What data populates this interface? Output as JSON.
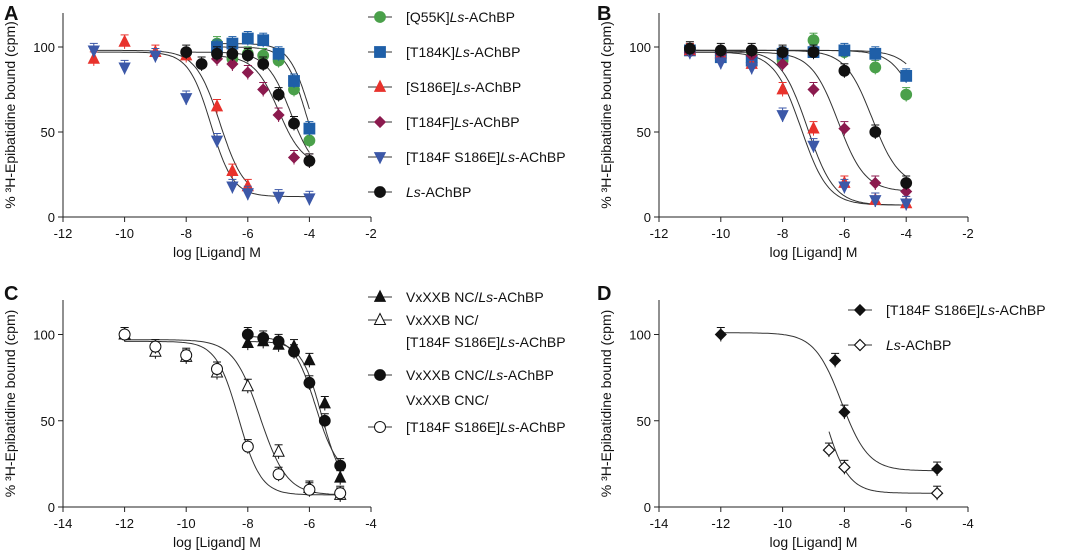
{
  "figure": {
    "panels": [
      "A",
      "B",
      "C",
      "D"
    ]
  },
  "chart_data": [
    {
      "panel": "A",
      "type": "line",
      "xlabel": "log [Ligand] M",
      "ylabel": "% ³H-Epibatidine bound (cpm)",
      "xlim": [
        -12,
        -2
      ],
      "ylim": [
        0,
        120
      ],
      "xticks": [
        -12,
        -10,
        -8,
        -6,
        -4,
        -2
      ],
      "yticks": [
        0,
        50,
        100
      ],
      "series": [
        {
          "name": "[Q55K]Ls-AChBP",
          "name_plain": "[Q55K]",
          "name_italic": "Ls",
          "name_suffix": "-AChBP",
          "color": "#4aa04a",
          "marker": "circle",
          "x": [
            -7,
            -6.5,
            -6,
            -5.5,
            -5,
            -4.5,
            -4
          ],
          "y": [
            102,
            93,
            96,
            95,
            92,
            75,
            45
          ],
          "fit": {
            "top": 100,
            "bottom": 20,
            "logEC50": -4.1,
            "hill": 1.3
          }
        },
        {
          "name": "[T184K]Ls-AChBP",
          "name_plain": "[T184K]",
          "name_italic": "Ls",
          "name_suffix": "-AChBP",
          "color": "#1f5fa8",
          "marker": "square",
          "x": [
            -7,
            -6.5,
            -6,
            -5.5,
            -5,
            -4.5,
            -4
          ],
          "y": [
            100,
            102,
            105,
            104,
            96,
            80,
            52
          ],
          "fit": {
            "top": 102,
            "bottom": 25,
            "logEC50": -4.0,
            "hill": 1.3
          }
        },
        {
          "name": "[S186E]Ls-AChBP",
          "name_plain": "[S186E]",
          "name_italic": "Ls",
          "name_suffix": "-AChBP",
          "color": "#e8322c",
          "marker": "triangle-up",
          "x": [
            -11,
            -10,
            -9,
            -8,
            -7,
            -6.5,
            -6
          ],
          "y": [
            93,
            103,
            97,
            95,
            65,
            27,
            18
          ],
          "fit": {
            "top": 98,
            "bottom": 12,
            "logEC50": -6.9,
            "hill": 1.1
          }
        },
        {
          "name": "[T184F]Ls-AChBP",
          "name_plain": "[T184F]",
          "name_italic": "Ls",
          "name_suffix": "-AChBP",
          "color": "#8b1a4e",
          "marker": "diamond",
          "x": [
            -7,
            -6.5,
            -6,
            -5.5,
            -5,
            -4.5,
            -4
          ],
          "y": [
            93,
            90,
            85,
            75,
            60,
            35,
            33
          ],
          "fit": {
            "top": 95,
            "bottom": 30,
            "logEC50": -5.0,
            "hill": 1.1
          }
        },
        {
          "name": "[T184F S186E]Ls-AChBP",
          "name_plain": "[T184F S186E]",
          "name_italic": "Ls",
          "name_suffix": "-AChBP",
          "color": "#3c58a8",
          "marker": "triangle-down",
          "x": [
            -11,
            -10,
            -9,
            -8,
            -7,
            -6.5,
            -6,
            -5,
            -4
          ],
          "y": [
            98,
            88,
            95,
            70,
            45,
            18,
            14,
            12,
            11
          ],
          "fit": {
            "top": 97,
            "bottom": 12,
            "logEC50": -7.2,
            "hill": 1.2
          }
        },
        {
          "name": "Ls-AChBP",
          "name_plain": "",
          "name_italic": "Ls",
          "name_suffix": "-AChBP",
          "color": "#111111",
          "marker": "circle",
          "x": [
            -8,
            -7.5,
            -7,
            -6.5,
            -6,
            -5.5,
            -5,
            -4.5,
            -4
          ],
          "y": [
            97,
            90,
            96,
            96,
            95,
            90,
            72,
            55,
            33
          ],
          "fit": {
            "top": 97,
            "bottom": 25,
            "logEC50": -4.6,
            "hill": 1.1
          }
        }
      ]
    },
    {
      "panel": "B",
      "type": "line",
      "xlabel": "log [Ligand] M",
      "ylabel": "% ³H-Epibatidine bound (cpm)",
      "xlim": [
        -12,
        -2
      ],
      "ylim": [
        0,
        120
      ],
      "xticks": [
        -12,
        -10,
        -8,
        -6,
        -4,
        -2
      ],
      "yticks": [
        0,
        50,
        100
      ],
      "series": [
        {
          "name": "[Q55K]Ls-AChBP",
          "color": "#4aa04a",
          "marker": "circle",
          "x": [
            -11,
            -10,
            -9,
            -8,
            -7,
            -6,
            -5,
            -4
          ],
          "y": [
            98,
            95,
            95,
            92,
            104,
            97,
            88,
            72
          ],
          "fit": {
            "top": 98,
            "bottom": 20,
            "logEC50": -3.5,
            "hill": 1.0
          }
        },
        {
          "name": "[T184K]Ls-AChBP",
          "color": "#1f5fa8",
          "marker": "square",
          "x": [
            -11,
            -10,
            -9,
            -8,
            -7,
            -6,
            -5,
            -4
          ],
          "y": [
            98,
            94,
            92,
            96,
            97,
            98,
            96,
            83
          ],
          "fit": {
            "top": 98,
            "bottom": 40,
            "logEC50": -3.2,
            "hill": 1.0
          }
        },
        {
          "name": "[S186E]Ls-AChBP",
          "color": "#e8322c",
          "marker": "triangle-up",
          "x": [
            -11,
            -10,
            -9,
            -8,
            -7,
            -6,
            -5,
            -4
          ],
          "y": [
            98,
            96,
            90,
            75,
            52,
            20,
            10,
            8
          ],
          "fit": {
            "top": 98,
            "bottom": 7,
            "logEC50": -7.2,
            "hill": 1.0
          }
        },
        {
          "name": "[T184F]Ls-AChBP",
          "color": "#8b1a4e",
          "marker": "diamond",
          "x": [
            -11,
            -10,
            -9,
            -8,
            -7,
            -6,
            -5,
            -4
          ],
          "y": [
            97,
            96,
            95,
            90,
            75,
            52,
            20,
            15
          ],
          "fit": {
            "top": 97,
            "bottom": 15,
            "logEC50": -6.2,
            "hill": 1.0
          }
        },
        {
          "name": "[T184F S186E]Ls-AChBP",
          "color": "#3c58a8",
          "marker": "triangle-down",
          "x": [
            -11,
            -10,
            -9,
            -8,
            -7,
            -6,
            -5,
            -4
          ],
          "y": [
            97,
            91,
            88,
            60,
            42,
            18,
            10,
            8
          ],
          "fit": {
            "top": 97,
            "bottom": 7,
            "logEC50": -7.4,
            "hill": 1.0
          }
        },
        {
          "name": "Ls-AChBP",
          "color": "#111111",
          "marker": "circle",
          "x": [
            -11,
            -10,
            -9,
            -8,
            -7,
            -6,
            -5,
            -4
          ],
          "y": [
            99,
            98,
            98,
            97,
            97,
            86,
            50,
            20
          ],
          "fit": {
            "top": 98,
            "bottom": 18,
            "logEC50": -5.1,
            "hill": 1.0
          }
        }
      ]
    },
    {
      "panel": "C",
      "type": "line",
      "xlabel": "log [Ligand] M",
      "ylabel": "% ³H-Epibatidine bound (cpm)",
      "xlim": [
        -14,
        -4
      ],
      "ylim": [
        0,
        120
      ],
      "xticks": [
        -14,
        -12,
        -10,
        -8,
        -6,
        -4
      ],
      "yticks": [
        0,
        50,
        100
      ],
      "series": [
        {
          "name": "VxXXB NC/Ls-AChBP",
          "color": "#111111",
          "marker": "triangle-up",
          "x": [
            -8,
            -7.5,
            -7,
            -6.5,
            -6,
            -5.5,
            -5
          ],
          "y": [
            95,
            96,
            94,
            93,
            85,
            60,
            17
          ],
          "fit": {
            "top": 96,
            "bottom": 10,
            "logEC50": -5.6,
            "hill": 1.3
          }
        },
        {
          "name": "VxXXB NC/[T184F S186E]Ls-AChBP",
          "color": "#111111",
          "marker": "triangle-up-open",
          "x": [
            -12,
            -11,
            -10,
            -9,
            -8,
            -7,
            -6,
            -5
          ],
          "y": [
            100,
            90,
            87,
            78,
            70,
            32,
            11,
            7
          ],
          "fit": {
            "top": 97,
            "bottom": 7,
            "logEC50": -7.6,
            "hill": 1.0
          }
        },
        {
          "name": "VxXXB CNC/Ls-AChBP",
          "color": "#111111",
          "marker": "circle",
          "x": [
            -8,
            -7.5,
            -7,
            -6.5,
            -6,
            -5.5,
            -5
          ],
          "y": [
            100,
            98,
            96,
            90,
            72,
            50,
            24
          ],
          "fit": {
            "top": 99,
            "bottom": 18,
            "logEC50": -5.8,
            "hill": 1.2
          }
        },
        {
          "name": "VxXXB CNC/[T184F S186E]Ls-AChBP",
          "color": "#111111",
          "marker": "circle-open",
          "x": [
            -12,
            -11,
            -10,
            -9,
            -8,
            -7,
            -6,
            -5
          ],
          "y": [
            100,
            93,
            88,
            80,
            35,
            19,
            10,
            8
          ],
          "fit": {
            "top": 96,
            "bottom": 7,
            "logEC50": -8.3,
            "hill": 1.2
          }
        }
      ],
      "legend": {
        "entries": [
          {
            "marker": "triangle-up",
            "lines": [
              "VxXXB NC/",
              "Ls",
              "-AChBP"
            ]
          },
          {
            "marker": "triangle-up-open",
            "lines": [
              "VxXXB NC/",
              "[T184F S186E]",
              "Ls",
              "-AChBP"
            ]
          },
          {
            "marker": "circle",
            "lines": [
              "VxXXB CNC/",
              "Ls",
              "-AChBP"
            ]
          },
          {
            "marker": "circle-open",
            "lines": [
              "VxXXB CNC/",
              "[T184F S186E]",
              "Ls",
              "-AChBP"
            ]
          }
        ]
      }
    },
    {
      "panel": "D",
      "type": "line",
      "xlabel": "log [Ligand] M",
      "ylabel": "% ³H-Epibatidine bound (cpm)",
      "xlim": [
        -14,
        -4
      ],
      "ylim": [
        0,
        120
      ],
      "xticks": [
        -14,
        -12,
        -10,
        -8,
        -6,
        -4
      ],
      "yticks": [
        0,
        50,
        100
      ],
      "series": [
        {
          "name": "[T184F S186E]Ls-AChBP",
          "color": "#111111",
          "marker": "diamond",
          "x": [
            -12,
            -8.3,
            -8,
            -5
          ],
          "y": [
            100,
            85,
            55,
            22
          ],
          "fit": {
            "top": 101,
            "bottom": 21,
            "logEC50": -8.1,
            "hill": 1.0
          }
        },
        {
          "name": "Ls-AChBP",
          "color": "#111111",
          "marker": "diamond-open",
          "x": [
            -8.5,
            -8,
            -5
          ],
          "y": [
            33,
            23,
            8
          ],
          "fit": {
            "top": 103,
            "bottom": 8,
            "logEC50": -8.7,
            "hill": 1.1
          }
        }
      ]
    }
  ],
  "legends": {
    "A": [
      {
        "plain": "[Q55K]",
        "italic": "Ls",
        "suffix": "-AChBP"
      },
      {
        "plain": "[T184K]",
        "italic": "Ls",
        "suffix": "-AChBP"
      },
      {
        "plain": "[S186E]",
        "italic": "Ls",
        "suffix": "-AChBP"
      },
      {
        "plain": "[T184F]",
        "italic": "Ls",
        "suffix": "-AChBP"
      },
      {
        "plain": "[T184F S186E]",
        "italic": "Ls",
        "suffix": "-AChBP"
      },
      {
        "plain": "",
        "italic": "Ls",
        "suffix": "-AChBP"
      }
    ],
    "C": [
      {
        "line1": "VxXXB NC/",
        "line1_italic": "Ls",
        "line1_suffix": "-AChBP"
      },
      {
        "line1": "VxXXB NC/",
        "line2": "[T184F S186E]",
        "line2_italic": "Ls",
        "line2_suffix": "-AChBP"
      },
      {
        "line1": "VxXXB CNC/",
        "line1_italic": "Ls",
        "line1_suffix": "-AChBP"
      },
      {
        "line1": "VxXXB CNC/",
        "line2": "[T184F S186E]",
        "line2_italic": "Ls",
        "line2_suffix": "-AChBP"
      }
    ],
    "D": [
      {
        "plain": "[T184F S186E]",
        "italic": "Ls",
        "suffix": "-AChBP"
      },
      {
        "plain": "",
        "italic": "Ls",
        "suffix": "-AChBP"
      }
    ]
  }
}
